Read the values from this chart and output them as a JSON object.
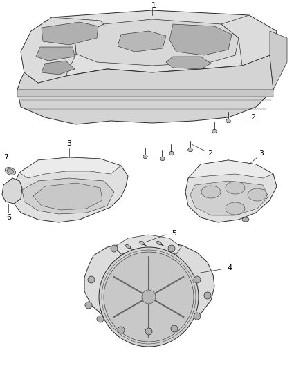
{
  "bg_color": "#ffffff",
  "fig_width": 4.38,
  "fig_height": 5.33,
  "dpi": 100,
  "line_color": "#2a2a2a",
  "shade_color": "#c8c8c8",
  "face_color": "#e8e8e8",
  "dark_color": "#888888",
  "label_color": "#000000",
  "label_fontsize": 8,
  "leader_lw": 0.5,
  "part_lw": 0.7
}
